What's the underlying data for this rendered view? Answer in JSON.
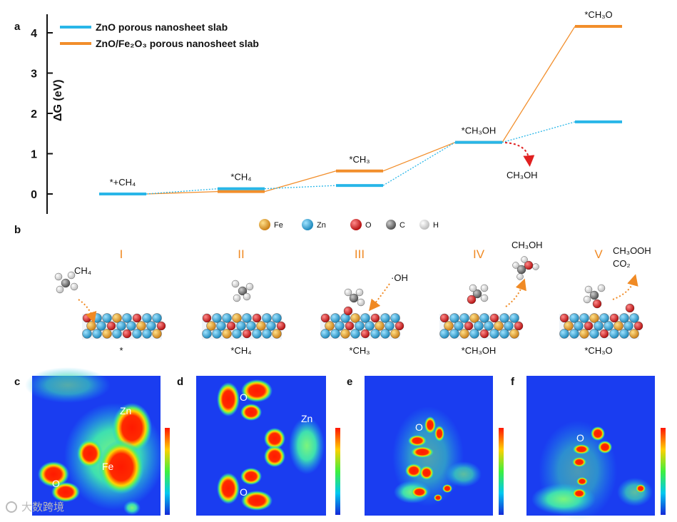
{
  "panels": {
    "a": "a",
    "b": "b",
    "c": "c",
    "d": "d",
    "e": "e",
    "f": "f"
  },
  "chart_data": {
    "type": "line",
    "title": "",
    "xlabel": "",
    "ylabel": "ΔG (eV)",
    "ylim": [
      -0.5,
      4.5
    ],
    "yticks": [
      "0",
      "1",
      "2",
      "3",
      "4"
    ],
    "states": [
      "*+CH4",
      "*CH4",
      "*CH3",
      "*CH3OH",
      "*CH3O"
    ],
    "state_labels": [
      "*+CH₄",
      "*CH₄",
      "*CH₃",
      "*CH₃OH",
      "*CH₃O"
    ],
    "series": [
      {
        "name": "ZnO porous nanosheet slab",
        "color": "#29b6e8",
        "values": [
          0.0,
          0.13,
          0.21,
          1.28,
          1.79
        ]
      },
      {
        "name": "ZnO/Fe₂O₃ porous nanosheet slab",
        "color": "#f28e2b",
        "values": [
          0.0,
          0.06,
          0.57,
          1.28,
          4.16
        ]
      }
    ],
    "annotation": "CH₃OH"
  },
  "legend_atoms": [
    {
      "label": "Fe",
      "color": "#e89a1a"
    },
    {
      "label": "Zn",
      "color": "#2aa8d8"
    },
    {
      "label": "O",
      "color": "#d81818"
    },
    {
      "label": "C",
      "color": "#777777"
    },
    {
      "label": "H",
      "color": "#e6e6e6"
    }
  ],
  "stages": [
    {
      "numeral": "I",
      "caption": "*",
      "mol": "CH₄"
    },
    {
      "numeral": "II",
      "caption": "*CH₄",
      "mol": ""
    },
    {
      "numeral": "III",
      "caption": "*CH₃",
      "mol": "·OH"
    },
    {
      "numeral": "IV",
      "caption": "*CH₃OH",
      "mol": "CH₃OH"
    },
    {
      "numeral": "V",
      "caption": "*CH₃O",
      "mol": "CH₃OOH",
      "mol2": "CO₂"
    }
  ],
  "maps": {
    "c": [
      "Zn",
      "Fe",
      "O"
    ],
    "d": [
      "O",
      "Zn",
      "O"
    ],
    "e": [
      "O"
    ],
    "f": [
      "O"
    ]
  },
  "watermark": "大数跨境"
}
